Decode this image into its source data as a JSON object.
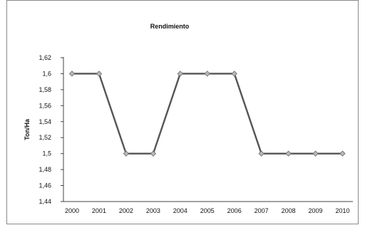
{
  "chart_data": {
    "type": "line",
    "title": "Rendimiento",
    "xlabel": "",
    "ylabel": "Ton/Ha",
    "categories": [
      "2000",
      "2001",
      "2002",
      "2003",
      "2004",
      "2005",
      "2006",
      "2007",
      "2008",
      "2009",
      "2010"
    ],
    "yticks": [
      "1,44",
      "1,46",
      "1,48",
      "1,5",
      "1,52",
      "1,54",
      "1,56",
      "1,58",
      "1,6",
      "1,62"
    ],
    "ylim": [
      1.44,
      1.62
    ],
    "grid": false,
    "series": [
      {
        "values": [
          1.6,
          1.6,
          1.5,
          1.5,
          1.6,
          1.6,
          1.6,
          1.5,
          1.5,
          1.5,
          1.5
        ]
      }
    ],
    "colors": {
      "line": "#555555",
      "marker": "#b8b8b8"
    }
  }
}
